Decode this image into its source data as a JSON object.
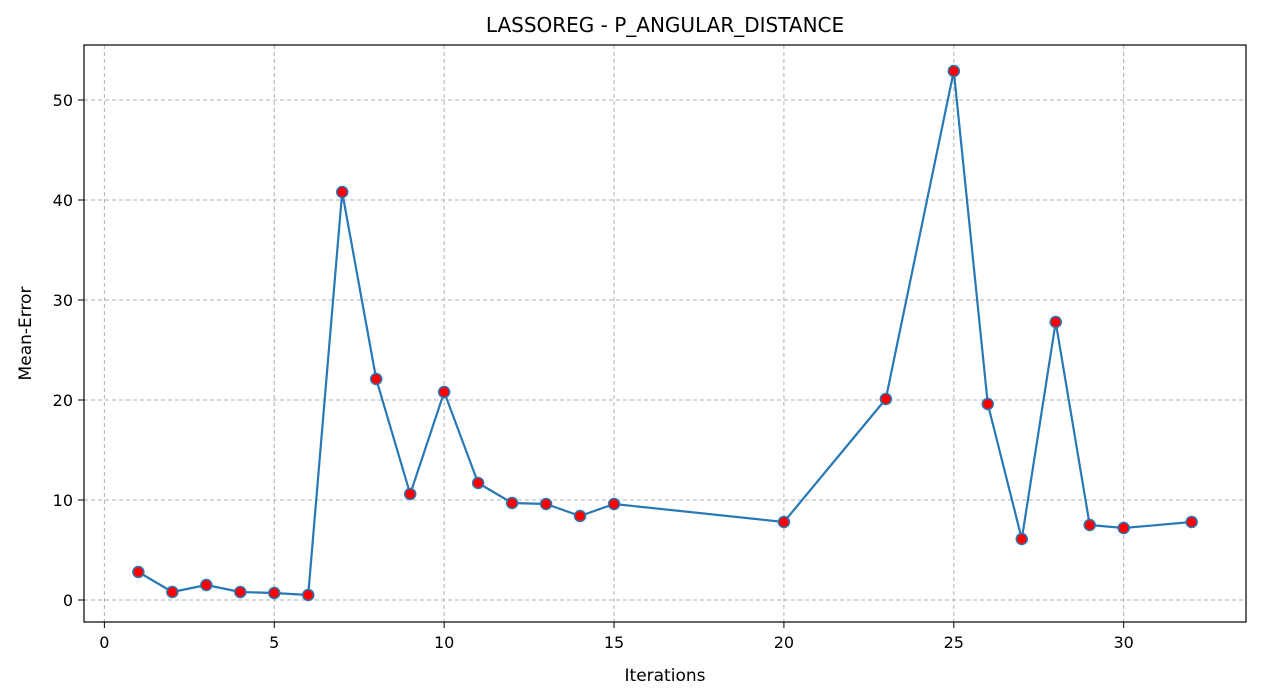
{
  "chart_data": {
    "type": "line",
    "title": "LASSOREG - P_ANGULAR_DISTANCE",
    "xlabel": "Iterations",
    "ylabel": "Mean-Error",
    "xlim": [
      -0.6,
      33.6
    ],
    "ylim": [
      -2.2,
      55.5
    ],
    "xticks": [
      0,
      5,
      10,
      15,
      20,
      25,
      30
    ],
    "yticks": [
      0,
      10,
      20,
      30,
      40,
      50
    ],
    "grid": true,
    "line_color": "#2878b5",
    "marker_color": "#ff0000",
    "marker_edge_color": "#2878b5",
    "grid_color": "#b0b0b0",
    "series": [
      {
        "x": [
          1,
          2,
          3,
          4,
          5,
          6,
          7,
          8,
          9,
          10,
          11,
          12,
          13,
          14,
          15,
          20,
          23,
          25,
          26,
          27,
          28,
          29,
          30,
          32
        ],
        "y": [
          2.8,
          0.8,
          1.5,
          0.8,
          0.7,
          0.5,
          40.8,
          22.1,
          10.6,
          20.8,
          11.7,
          9.7,
          9.6,
          8.4,
          9.6,
          7.8,
          20.1,
          52.9,
          19.6,
          6.1,
          27.8,
          7.5,
          7.2,
          7.8
        ]
      }
    ]
  }
}
